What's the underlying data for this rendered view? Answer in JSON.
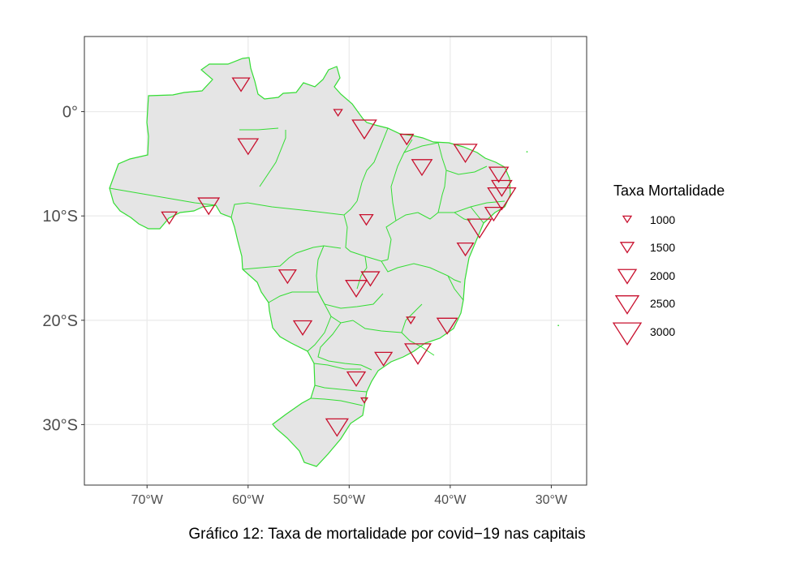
{
  "caption": "Gráfico 12: Taxa de mortalidade por covid−19 nas capitais",
  "legend": {
    "title": "Taxa Mortalidade",
    "entries": [
      {
        "label": "1000",
        "value": 1000
      },
      {
        "label": "1500",
        "value": 1500
      },
      {
        "label": "2000",
        "value": 2000
      },
      {
        "label": "2500",
        "value": 2500
      },
      {
        "label": "3000",
        "value": 3000
      }
    ]
  },
  "colors": {
    "marker": "#c8102e",
    "state_fill": "#e5e5e5",
    "state_border": "#33dd33",
    "grid": "#ebebeb",
    "panel_border": "#333333"
  },
  "chart_data": {
    "type": "scatter",
    "xlim": [
      -76.2,
      -26.5
    ],
    "ylim": [
      -35.8,
      7.2
    ],
    "x_ticks": [
      {
        "value": -70,
        "label": "70°W"
      },
      {
        "value": -60,
        "label": "60°W"
      },
      {
        "value": -50,
        "label": "50°W"
      },
      {
        "value": -40,
        "label": "40°W"
      },
      {
        "value": -30,
        "label": "30°W"
      }
    ],
    "y_ticks": [
      {
        "value": 0,
        "label": "0°"
      },
      {
        "value": -10,
        "label": "10°S"
      },
      {
        "value": -20,
        "label": "20°S"
      },
      {
        "value": -30,
        "label": "30°S"
      }
    ],
    "points": [
      {
        "lon": -60.7,
        "lat": 2.8,
        "rate": 1900
      },
      {
        "lon": -51.1,
        "lat": 0.0,
        "rate": 1000
      },
      {
        "lon": -60.0,
        "lat": -3.1,
        "rate": 2200
      },
      {
        "lon": -48.5,
        "lat": -1.4,
        "rate": 2600
      },
      {
        "lon": -44.3,
        "lat": -2.5,
        "rate": 1500
      },
      {
        "lon": -42.8,
        "lat": -5.1,
        "rate": 2200
      },
      {
        "lon": -38.5,
        "lat": -3.7,
        "rate": 2500
      },
      {
        "lon": -35.2,
        "lat": -5.8,
        "rate": 2100
      },
      {
        "lon": -34.9,
        "lat": -7.1,
        "rate": 2200
      },
      {
        "lon": -34.9,
        "lat": -8.0,
        "rate": 3000
      },
      {
        "lon": -35.7,
        "lat": -9.6,
        "rate": 1900
      },
      {
        "lon": -37.1,
        "lat": -10.9,
        "rate": 2600
      },
      {
        "lon": -38.5,
        "lat": -13.0,
        "rate": 1800
      },
      {
        "lon": -48.3,
        "lat": -10.2,
        "rate": 1500
      },
      {
        "lon": -63.9,
        "lat": -8.8,
        "rate": 2300
      },
      {
        "lon": -67.8,
        "lat": -10.0,
        "rate": 1700
      },
      {
        "lon": -56.1,
        "lat": -15.6,
        "rate": 1900
      },
      {
        "lon": -47.9,
        "lat": -15.8,
        "rate": 2000
      },
      {
        "lon": -49.3,
        "lat": -16.7,
        "rate": 2300
      },
      {
        "lon": -54.6,
        "lat": -20.5,
        "rate": 2000
      },
      {
        "lon": -43.9,
        "lat": -19.9,
        "rate": 1000
      },
      {
        "lon": -40.3,
        "lat": -20.3,
        "rate": 2200
      },
      {
        "lon": -43.2,
        "lat": -22.9,
        "rate": 2800
      },
      {
        "lon": -46.6,
        "lat": -23.5,
        "rate": 1900
      },
      {
        "lon": -49.3,
        "lat": -25.4,
        "rate": 2000
      },
      {
        "lon": -48.5,
        "lat": -27.6,
        "rate": 800
      },
      {
        "lon": -51.2,
        "lat": -30.0,
        "rate": 2400
      }
    ]
  }
}
